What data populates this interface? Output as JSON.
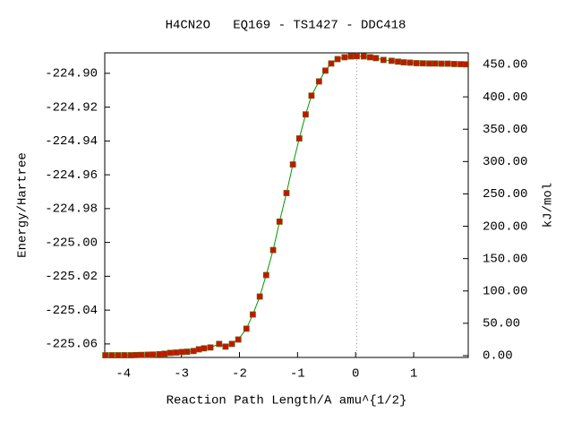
{
  "chart_data": {
    "type": "line",
    "title": "H4CN2O   EQ169 - TS1427 - DDC418",
    "xlabel": "Reaction Path Length/A amu^{1/2}",
    "ylabel": "Energy/Hartree",
    "y2label": "kJ/mol",
    "xlim": [
      -4.32,
      1.94
    ],
    "xticks": [
      -4,
      -3,
      -2,
      -1,
      0,
      1
    ],
    "ylim": [
      -225.068,
      -224.8879
    ],
    "yticks": [
      {
        "value": -224.9,
        "label": "-224.90"
      },
      {
        "value": -224.92,
        "label": "-224.92"
      },
      {
        "value": -224.94,
        "label": "-224.94"
      },
      {
        "value": -224.96,
        "label": "-224.96"
      },
      {
        "value": -224.98,
        "label": "-224.98"
      },
      {
        "value": -225.0,
        "label": "-225.00"
      },
      {
        "value": -225.02,
        "label": "-225.02"
      },
      {
        "value": -225.04,
        "label": "-225.04"
      },
      {
        "value": -225.06,
        "label": "-225.06"
      }
    ],
    "y2lim": [
      -2.77,
      468.0
    ],
    "y2ticks": [
      {
        "value": 0,
        "label": "0.00"
      },
      {
        "value": 50,
        "label": "50.00"
      },
      {
        "value": 100,
        "label": "100.00"
      },
      {
        "value": 150,
        "label": "150.00"
      },
      {
        "value": 200,
        "label": "200.00"
      },
      {
        "value": 250,
        "label": "250.00"
      },
      {
        "value": 300,
        "label": "300.00"
      },
      {
        "value": 350,
        "label": "350.00"
      },
      {
        "value": 400,
        "label": "400.00"
      },
      {
        "value": 450,
        "label": "450.00"
      }
    ],
    "series": [
      {
        "color": "#009900",
        "marker_color": "#cc1100",
        "x": [
          -4.31,
          -4.2,
          -4.09,
          -3.98,
          -3.87,
          -3.78,
          -3.69,
          -3.58,
          -3.49,
          -3.38,
          -3.29,
          -3.19,
          -3.09,
          -2.99,
          -2.9,
          -2.79,
          -2.7,
          -2.61,
          -2.5,
          -2.35,
          -2.24,
          -2.13,
          -2.02,
          -1.88,
          -1.77,
          -1.65,
          -1.54,
          -1.42,
          -1.31,
          -1.19,
          -1.08,
          -0.97,
          -0.86,
          -0.76,
          -0.63,
          -0.52,
          -0.42,
          -0.31,
          -0.19,
          -0.08,
          0.02,
          0.14,
          0.25,
          0.35,
          0.48,
          0.62,
          0.73,
          0.83,
          0.94,
          1.05,
          1.16,
          1.27,
          1.37,
          1.48,
          1.59,
          1.7,
          1.81,
          1.9
        ],
        "values": [
          -225.0667,
          -225.0667,
          -225.0667,
          -225.0667,
          -225.0667,
          -225.0666,
          -225.0665,
          -225.0664,
          -225.0663,
          -225.0661,
          -225.0658,
          -225.0653,
          -225.0651,
          -225.0648,
          -225.0646,
          -225.0642,
          -225.0632,
          -225.0626,
          -225.0621,
          -225.06,
          -225.0616,
          -225.06,
          -225.0574,
          -225.051,
          -225.0426,
          -225.032,
          -225.0193,
          -225.0045,
          -224.9877,
          -224.9708,
          -224.9539,
          -224.9385,
          -224.9243,
          -224.9132,
          -224.9048,
          -224.8984,
          -224.8942,
          -224.8916,
          -224.8905,
          -224.89,
          -224.8899,
          -224.89,
          -224.8905,
          -224.891,
          -224.8921,
          -224.8926,
          -224.8931,
          -224.8935,
          -224.8937,
          -224.894,
          -224.8941,
          -224.8942,
          -224.8942,
          -224.8943,
          -224.8943,
          -224.8945,
          -224.8946,
          -224.8947
        ]
      }
    ]
  }
}
